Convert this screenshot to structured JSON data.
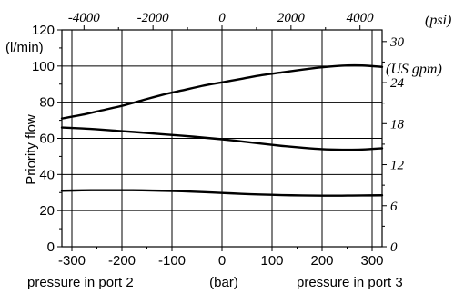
{
  "chart_data": {
    "type": "line",
    "x_bottom": {
      "ticks": [
        "-300",
        "-200",
        "-100",
        "0",
        "100",
        "200",
        "300"
      ],
      "tick_values": [
        -300,
        -200,
        -100,
        0,
        100,
        200,
        300
      ],
      "range": [
        -320,
        320
      ],
      "label_left": "pressure in port 2",
      "label_center": "(bar)",
      "label_right": "pressure in port 3"
    },
    "x_top": {
      "ticks": [
        "-4000",
        "-2000",
        "0",
        "2000",
        "4000"
      ],
      "tick_values": [
        -4000,
        -2000,
        0,
        2000,
        4000
      ],
      "unit": "(psi)"
    },
    "y_left": {
      "ticks": [
        "0",
        "20",
        "40",
        "60",
        "80",
        "100",
        "120"
      ],
      "tick_values": [
        0,
        20,
        40,
        60,
        80,
        100,
        120
      ],
      "range": [
        0,
        120
      ],
      "unit": "(l/min)",
      "label": "Priority flow"
    },
    "y_right": {
      "ticks": [
        "0",
        "6",
        "12",
        "18",
        "24",
        "30"
      ],
      "tick_values": [
        0,
        6,
        12,
        18,
        24,
        30
      ],
      "unit": "(US gpm)"
    },
    "grid": true,
    "series": [
      {
        "x": [
          -320,
          -280,
          -240,
          -200,
          -160,
          -120,
          -80,
          -40,
          0,
          40,
          80,
          120,
          160,
          200,
          240,
          280,
          320
        ],
        "y": [
          71,
          73,
          75.5,
          78,
          81,
          84,
          86.5,
          89,
          91,
          93,
          95,
          96.5,
          98,
          99.3,
          100.2,
          100.3,
          99.5
        ]
      },
      {
        "x": [
          -320,
          -280,
          -240,
          -200,
          -160,
          -120,
          -80,
          -40,
          0,
          40,
          80,
          120,
          160,
          200,
          240,
          280,
          320
        ],
        "y": [
          66,
          65.5,
          64.8,
          64,
          63.2,
          62.3,
          61.5,
          60.5,
          59.5,
          58.3,
          57,
          55.8,
          54.8,
          54,
          53.7,
          53.8,
          54.5
        ]
      },
      {
        "x": [
          -320,
          -280,
          -240,
          -200,
          -160,
          -120,
          -80,
          -40,
          0,
          40,
          80,
          120,
          160,
          200,
          240,
          280,
          320
        ],
        "y": [
          31,
          31.2,
          31.3,
          31.3,
          31.2,
          31,
          30.7,
          30.3,
          29.8,
          29.3,
          28.9,
          28.6,
          28.4,
          28.3,
          28.3,
          28.4,
          28.5
        ]
      }
    ]
  }
}
